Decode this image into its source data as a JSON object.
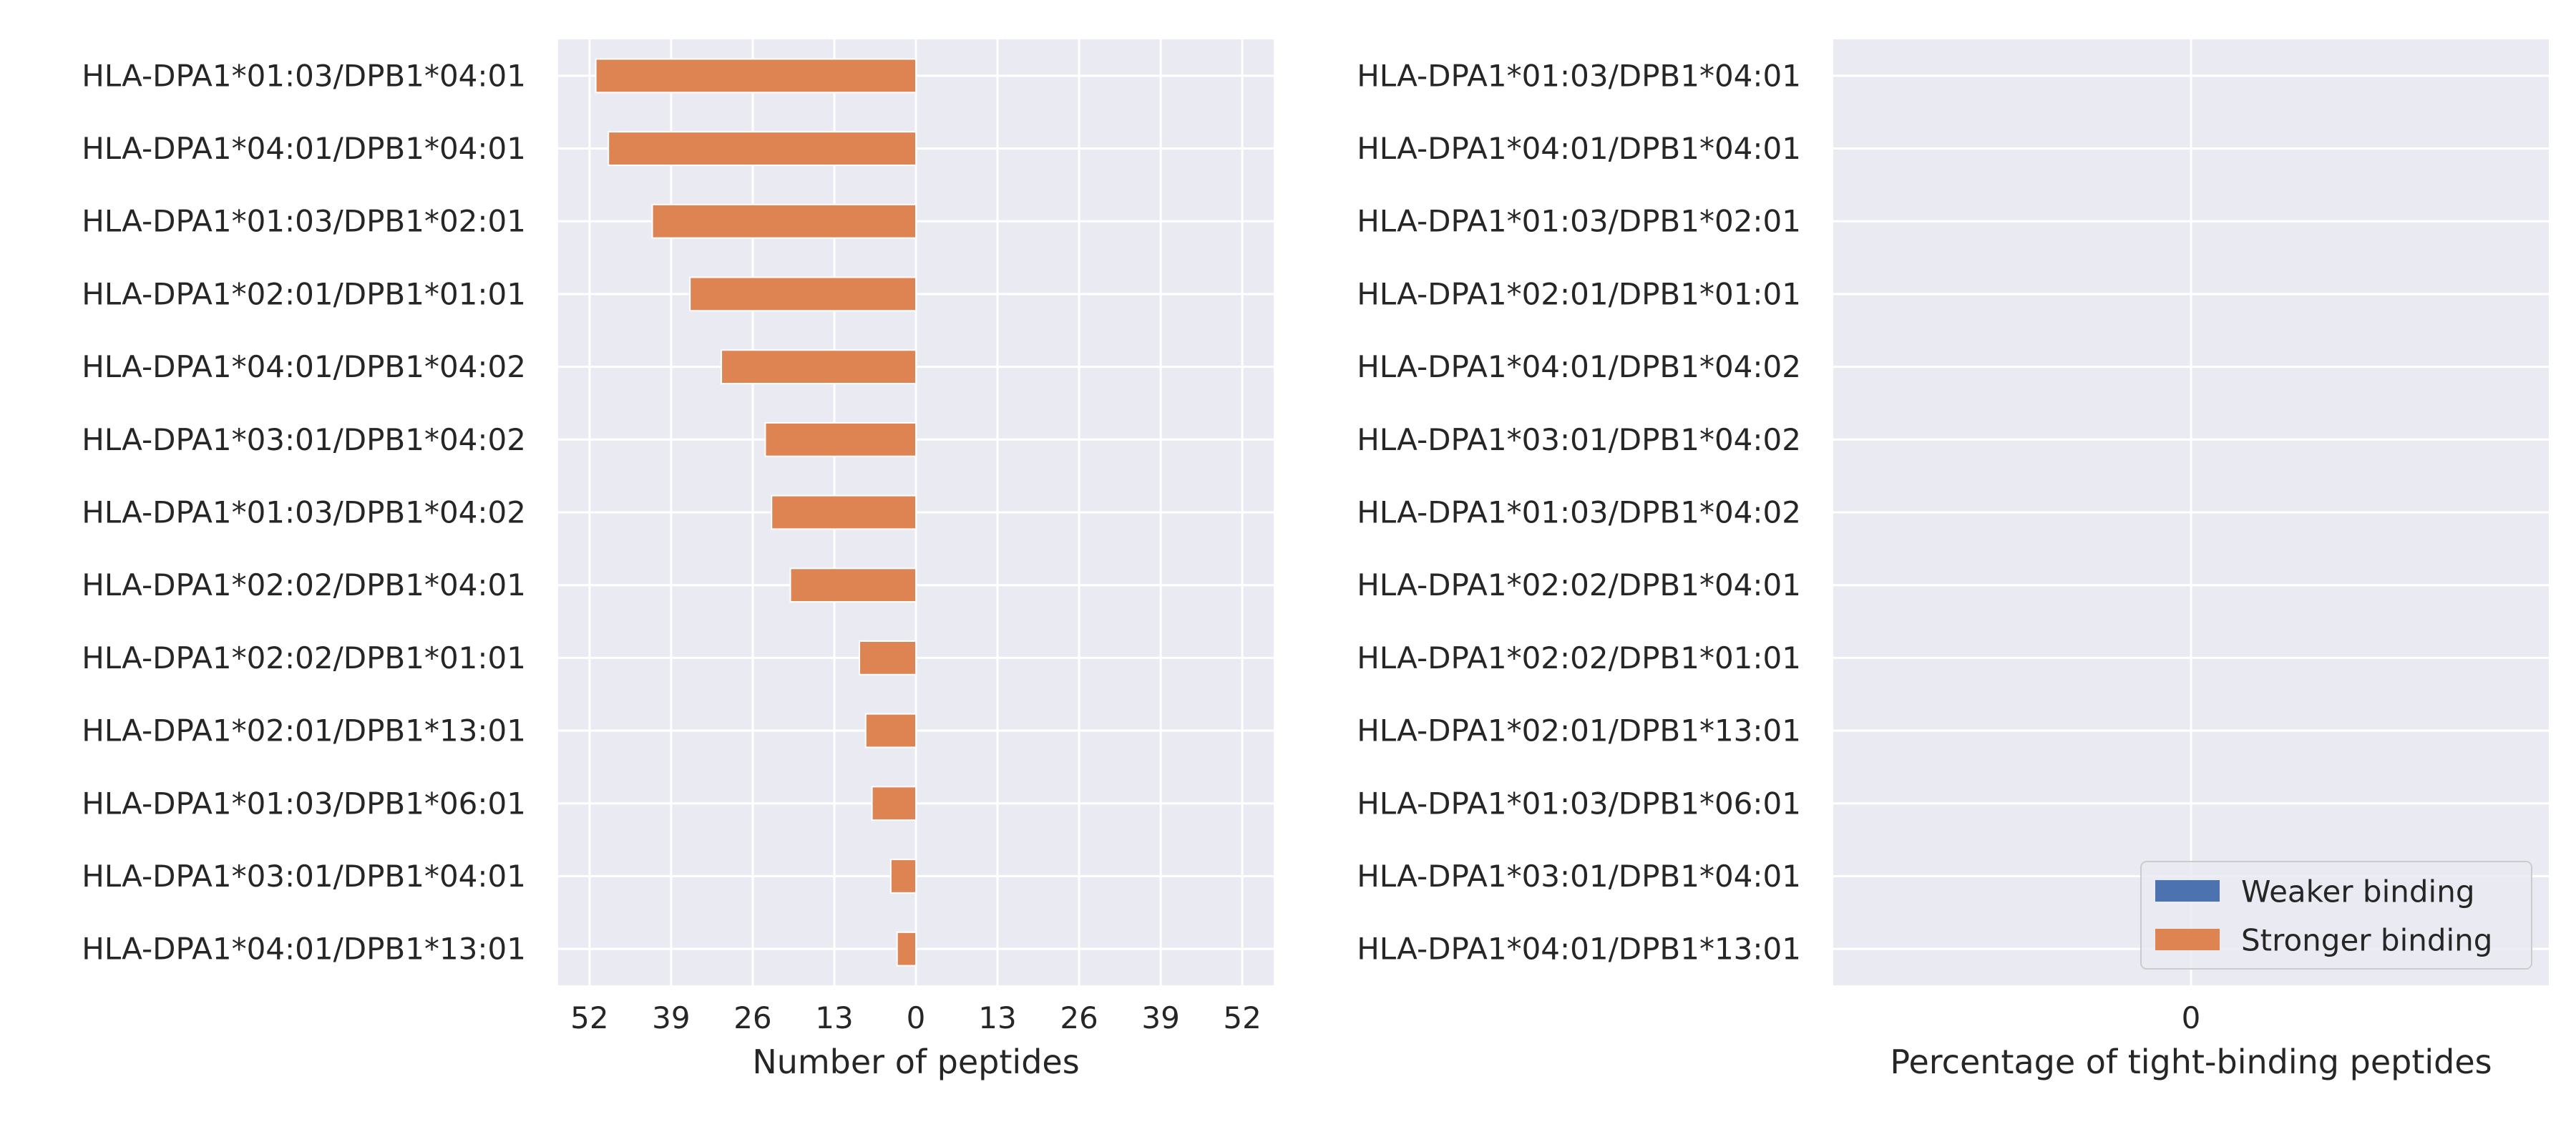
{
  "chart_data": [
    {
      "type": "bar",
      "orientation": "horizontal",
      "categories": [
        "HLA-DPA1*01:03/DPB1*04:01",
        "HLA-DPA1*04:01/DPB1*04:01",
        "HLA-DPA1*01:03/DPB1*02:01",
        "HLA-DPA1*02:01/DPB1*01:01",
        "HLA-DPA1*04:01/DPB1*04:02",
        "HLA-DPA1*03:01/DPB1*04:02",
        "HLA-DPA1*01:03/DPB1*04:02",
        "HLA-DPA1*02:02/DPB1*04:01",
        "HLA-DPA1*02:02/DPB1*01:01",
        "HLA-DPA1*02:01/DPB1*13:01",
        "HLA-DPA1*01:03/DPB1*06:01",
        "HLA-DPA1*03:01/DPB1*04:01",
        "HLA-DPA1*04:01/DPB1*13:01"
      ],
      "series": [
        {
          "name": "Weaker binding",
          "color": "#4c72b0",
          "values": [
            0,
            0,
            0,
            0,
            0,
            0,
            0,
            0,
            0,
            0,
            0,
            0,
            0
          ]
        },
        {
          "name": "Stronger binding",
          "color": "#dd8452",
          "values": [
            51,
            49,
            42,
            36,
            31,
            24,
            23,
            20,
            9,
            8,
            7,
            4,
            3
          ]
        }
      ],
      "xlabel": "Number of peptides",
      "x_ticks": [
        -52,
        -39,
        -26,
        -13,
        0,
        13,
        26,
        39,
        52
      ],
      "x_tick_labels": [
        "52",
        "39",
        "26",
        "13",
        "0",
        "13",
        "26",
        "39",
        "52"
      ],
      "xlim": [
        -57,
        57
      ],
      "grid": true
    },
    {
      "type": "bar",
      "orientation": "horizontal",
      "categories": [
        "HLA-DPA1*01:03/DPB1*04:01",
        "HLA-DPA1*04:01/DPB1*04:01",
        "HLA-DPA1*01:03/DPB1*02:01",
        "HLA-DPA1*02:01/DPB1*01:01",
        "HLA-DPA1*04:01/DPB1*04:02",
        "HLA-DPA1*03:01/DPB1*04:02",
        "HLA-DPA1*01:03/DPB1*04:02",
        "HLA-DPA1*02:02/DPB1*04:01",
        "HLA-DPA1*02:02/DPB1*01:01",
        "HLA-DPA1*02:01/DPB1*13:01",
        "HLA-DPA1*01:03/DPB1*06:01",
        "HLA-DPA1*03:01/DPB1*04:01",
        "HLA-DPA1*04:01/DPB1*13:01"
      ],
      "series": [],
      "xlabel": "Percentage of tight-binding peptides",
      "x_ticks": [
        0
      ],
      "x_tick_labels": [
        "0"
      ],
      "xlim": [
        -1,
        1
      ],
      "grid": true,
      "legend": {
        "position": "lower-right",
        "entries": [
          {
            "label": "Weaker binding",
            "color": "#4c72b0"
          },
          {
            "label": "Stronger binding",
            "color": "#dd8452"
          }
        ]
      }
    }
  ]
}
